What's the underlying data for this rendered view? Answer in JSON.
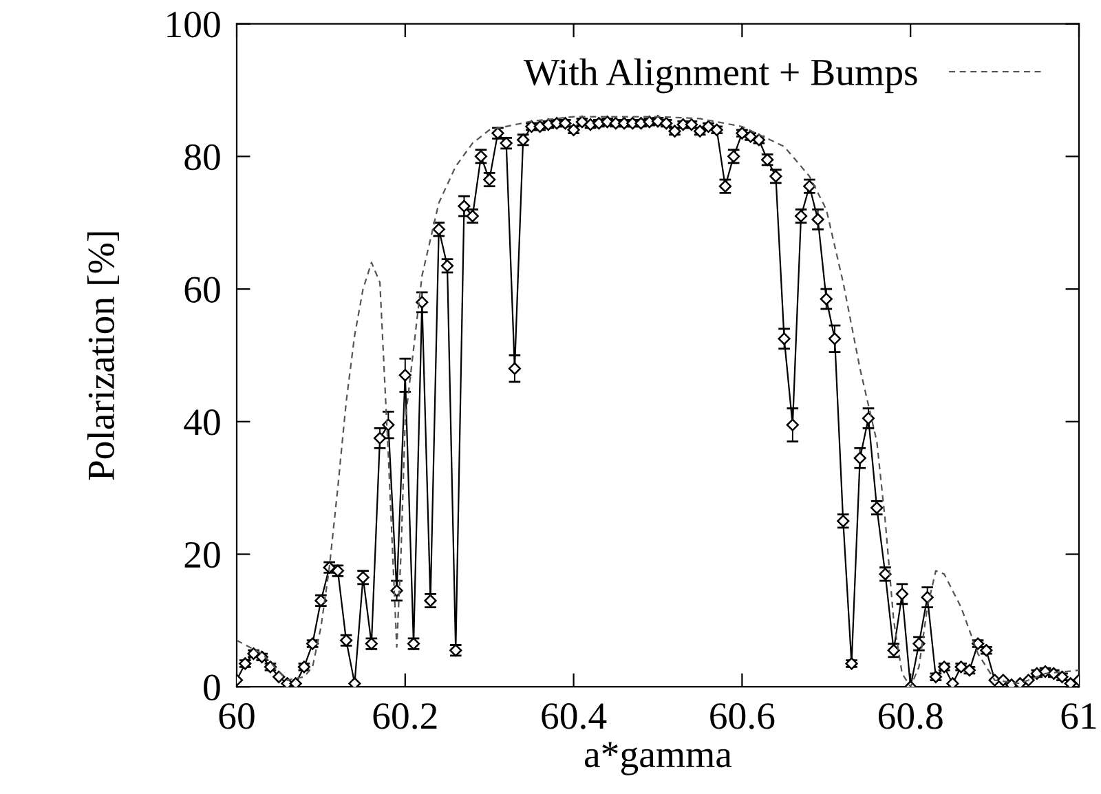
{
  "chart_data": {
    "type": "line",
    "xlabel": "a*gamma",
    "ylabel": "Polarization [%]",
    "xlim": [
      60,
      61
    ],
    "xticks": [
      60,
      {
        "value": 60.2,
        "label": "60.2"
      },
      {
        "value": 60.4,
        "label": "60.4"
      },
      {
        "value": 60.6,
        "label": "60.6"
      },
      {
        "value": 60.8,
        "label": "60.8"
      },
      61
    ],
    "ylim": [
      0,
      100
    ],
    "yticks": [
      0,
      20,
      40,
      60,
      80,
      100
    ],
    "grid": false,
    "legend": "top right",
    "series": [
      {
        "color": "#000000",
        "marker": "diamond",
        "line_style": "solid",
        "x": [
          60.0,
          60.01,
          60.02,
          60.03,
          60.04,
          60.05,
          60.06,
          60.07,
          60.08,
          60.09,
          60.1,
          60.11,
          60.12,
          60.13,
          60.14,
          60.15,
          60.16,
          60.17,
          60.18,
          60.19,
          60.2,
          60.21,
          60.22,
          60.23,
          60.24,
          60.25,
          60.26,
          60.27,
          60.28,
          60.29,
          60.3,
          60.31,
          60.32,
          60.33,
          60.34,
          60.35,
          60.36,
          60.37,
          60.38,
          60.39,
          60.4,
          60.41,
          60.42,
          60.43,
          60.44,
          60.45,
          60.46,
          60.47,
          60.48,
          60.49,
          60.5,
          60.51,
          60.52,
          60.53,
          60.54,
          60.55,
          60.56,
          60.57,
          60.58,
          60.59,
          60.6,
          60.61,
          60.62,
          60.63,
          60.64,
          60.65,
          60.66,
          60.67,
          60.68,
          60.69,
          60.7,
          60.71,
          60.72,
          60.73,
          60.74,
          60.75,
          60.76,
          60.77,
          60.78,
          60.79,
          60.8,
          60.81,
          60.82,
          60.83,
          60.84,
          60.85,
          60.86,
          60.87,
          60.88,
          60.89,
          60.9,
          60.91,
          60.92,
          60.93,
          60.94,
          60.95,
          60.96,
          60.97,
          60.98,
          60.99,
          61.0
        ],
        "values": [
          1,
          3.5,
          5,
          4.5,
          3,
          1.5,
          0.5,
          0.5,
          3,
          6.5,
          13,
          18,
          17.5,
          7,
          0.5,
          16.5,
          6.5,
          37.5,
          39.5,
          14.5,
          47,
          6.5,
          58,
          13,
          69,
          63.5,
          5.5,
          72.5,
          71,
          80,
          76.5,
          83.5,
          82,
          48,
          82.5,
          84.5,
          84.5,
          84.8,
          85,
          85,
          84,
          85.2,
          84.8,
          85,
          85.2,
          85,
          85,
          85,
          85,
          85.2,
          85.3,
          85,
          83.8,
          84.8,
          84.8,
          83.8,
          84.5,
          84,
          75.5,
          80,
          83.5,
          83,
          82.5,
          79.5,
          77,
          52.5,
          39.5,
          71,
          75.5,
          70.5,
          58.5,
          52.5,
          25,
          3.5,
          34.5,
          40.5,
          27,
          17,
          5.5,
          14,
          0,
          6.5,
          13.5,
          1.5,
          3,
          0.5,
          3,
          2.5,
          6.5,
          5.5,
          1,
          1,
          0.3,
          0.5,
          1,
          2,
          2.3,
          2,
          1.5,
          0.5,
          1
        ],
        "errors": [
          null,
          0.5,
          0.5,
          0.5,
          0.5,
          null,
          null,
          null,
          0.5,
          0.5,
          0.8,
          0.8,
          0.8,
          0.8,
          null,
          1,
          0.8,
          1.5,
          2,
          1.5,
          2.5,
          0.8,
          1.5,
          1,
          1,
          1,
          0.8,
          1.5,
          1,
          1,
          1,
          0.8,
          0.8,
          2,
          0.8,
          0.5,
          0.5,
          0.5,
          0.5,
          0.5,
          0.5,
          0.5,
          0.5,
          0.5,
          0.5,
          0.5,
          0.5,
          0.5,
          0.5,
          0.5,
          0.5,
          0.5,
          0.5,
          0.5,
          0.5,
          0.5,
          0.5,
          0.5,
          1,
          1,
          0.5,
          0.5,
          0.5,
          0.8,
          1,
          1.5,
          2.5,
          1,
          1,
          1.5,
          1.5,
          2,
          1,
          0.5,
          1.5,
          1.5,
          1,
          1,
          1,
          1.5,
          null,
          1,
          1.5,
          0.5,
          0.5,
          null,
          0.5,
          0.5,
          0.5,
          0.5,
          null,
          null,
          null,
          null,
          null,
          0.5,
          0.5,
          0.5,
          0.5,
          null,
          null
        ]
      },
      {
        "name": "With Alignment + Bumps",
        "color": "#555555",
        "marker": "none",
        "line_style": "dashed",
        "x": [
          60.0,
          60.03,
          60.06,
          60.08,
          60.09,
          60.1,
          60.11,
          60.12,
          60.13,
          60.14,
          60.15,
          60.16,
          60.17,
          60.18,
          60.19,
          60.195,
          60.2,
          60.22,
          60.24,
          60.26,
          60.28,
          60.3,
          60.35,
          60.4,
          60.5,
          60.55,
          60.6,
          60.65,
          60.68,
          60.7,
          60.72,
          60.74,
          60.76,
          60.77,
          60.78,
          60.79,
          60.8,
          60.81,
          60.82,
          60.83,
          60.84,
          60.86,
          60.88,
          60.9,
          60.93,
          60.96,
          61.0
        ],
        "values": [
          7,
          5,
          1,
          1.5,
          3,
          9,
          18,
          30,
          43,
          53,
          60,
          64,
          61,
          35,
          6,
          20,
          40,
          62,
          73,
          78.5,
          82,
          84,
          85.3,
          86,
          86,
          85.7,
          84.5,
          81.5,
          77,
          72,
          61,
          48,
          37,
          25,
          10,
          2,
          0,
          3,
          12,
          17.5,
          17,
          12,
          5,
          1,
          0.5,
          2,
          2.5
        ]
      }
    ]
  }
}
